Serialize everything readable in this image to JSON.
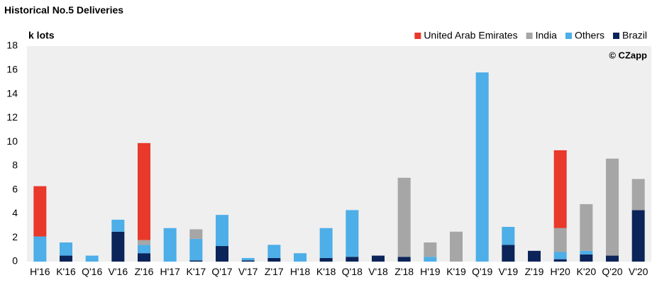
{
  "chart_data": {
    "type": "bar",
    "stacked": true,
    "title": "Historical No.5 Deliveries",
    "ylabel": "k lots",
    "xlabel": "",
    "ylim": [
      0,
      18
    ],
    "yticks": [
      "0",
      "2",
      "4",
      "6",
      "8",
      "10",
      "12",
      "14",
      "16",
      "18"
    ],
    "grid": false,
    "legend_position": "top-right",
    "watermark": "© CZapp",
    "categories": [
      "H'16",
      "K'16",
      "Q'16",
      "V'16",
      "Z'16",
      "H'17",
      "K'17",
      "Q'17",
      "V'17",
      "Z'17",
      "H'18",
      "K'18",
      "Q'18",
      "V'18",
      "Z'18",
      "H'19",
      "K'19",
      "Q'19",
      "V'19",
      "Z'19",
      "H'20",
      "K'20",
      "Q'20",
      "V'20"
    ],
    "series": [
      {
        "name": "Brazil",
        "color": "#0b2459",
        "values": [
          0,
          0.5,
          0,
          2.5,
          0.7,
          0,
          0.1,
          1.3,
          0.1,
          0.3,
          0,
          0.3,
          0.4,
          0.5,
          0.4,
          0,
          0,
          0,
          1.4,
          0.9,
          0.2,
          0.6,
          0.5,
          4.3
        ]
      },
      {
        "name": "Others",
        "color": "#4daee8",
        "values": [
          2.1,
          1.1,
          0.5,
          1.0,
          0.7,
          2.8,
          1.8,
          2.6,
          0.2,
          1.1,
          0.7,
          2.5,
          3.9,
          0,
          0,
          0.4,
          0,
          15.8,
          1.5,
          0,
          0.6,
          0.3,
          0,
          0
        ]
      },
      {
        "name": "India",
        "color": "#a6a6a6",
        "values": [
          0,
          0,
          0,
          0,
          0.4,
          0,
          0.8,
          0,
          0,
          0,
          0,
          0,
          0,
          0,
          6.6,
          1.2,
          2.5,
          0,
          0,
          0,
          2.0,
          3.9,
          8.1,
          2.6
        ]
      },
      {
        "name": "United Arab Emirates",
        "color": "#e8392b",
        "values": [
          4.2,
          0,
          0,
          0,
          8.1,
          0,
          0,
          0,
          0,
          0,
          0,
          0,
          0,
          0,
          0,
          0,
          0,
          0,
          0,
          0,
          6.5,
          0,
          0,
          0
        ]
      }
    ],
    "legend_order": [
      "United Arab Emirates",
      "India",
      "Others",
      "Brazil"
    ]
  }
}
